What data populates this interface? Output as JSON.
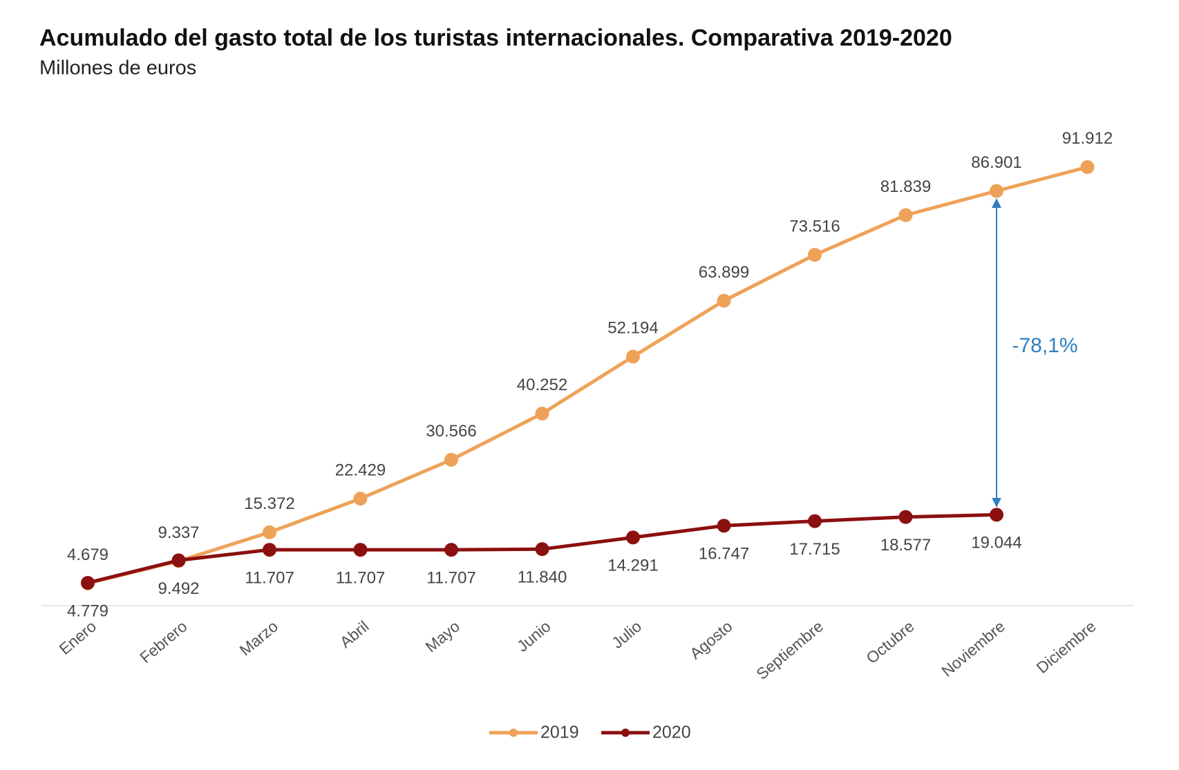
{
  "chart_data": {
    "type": "line",
    "title": "Acumulado del gasto total de los turistas internacionales. Comparativa 2019-2020",
    "subtitle": "Millones de euros",
    "annotation": "-78,1%",
    "categories": [
      "Enero",
      "Febrero",
      "Marzo",
      "Abril",
      "Mayo",
      "Junio",
      "Julio",
      "Agosto",
      "Septiembre",
      "Octubre",
      "Noviembre",
      "Diciembre"
    ],
    "ylim": [
      0,
      100000
    ],
    "legend": "bottom",
    "series": [
      {
        "name": "2019",
        "color": "#eea258",
        "values": [
          4679,
          9337,
          15372,
          22429,
          30566,
          40252,
          52194,
          63899,
          73516,
          81839,
          86901,
          91912
        ],
        "value_labels": [
          "4.679",
          "9.337",
          "15.372",
          "22.429",
          "30.566",
          "40.252",
          "52.194",
          "63.899",
          "73.516",
          "81.839",
          "86.901",
          "91.912"
        ]
      },
      {
        "name": "2020",
        "color": "#8b1010",
        "values": [
          4779,
          9492,
          11707,
          11707,
          11707,
          11840,
          14291,
          16747,
          17715,
          18577,
          19044,
          null
        ],
        "value_labels": [
          "4.779",
          "9.492",
          "11.707",
          "11.707",
          "11.707",
          "11.840",
          "14.291",
          "16.747",
          "17.715",
          "18.577",
          "19.044",
          null
        ]
      }
    ]
  }
}
